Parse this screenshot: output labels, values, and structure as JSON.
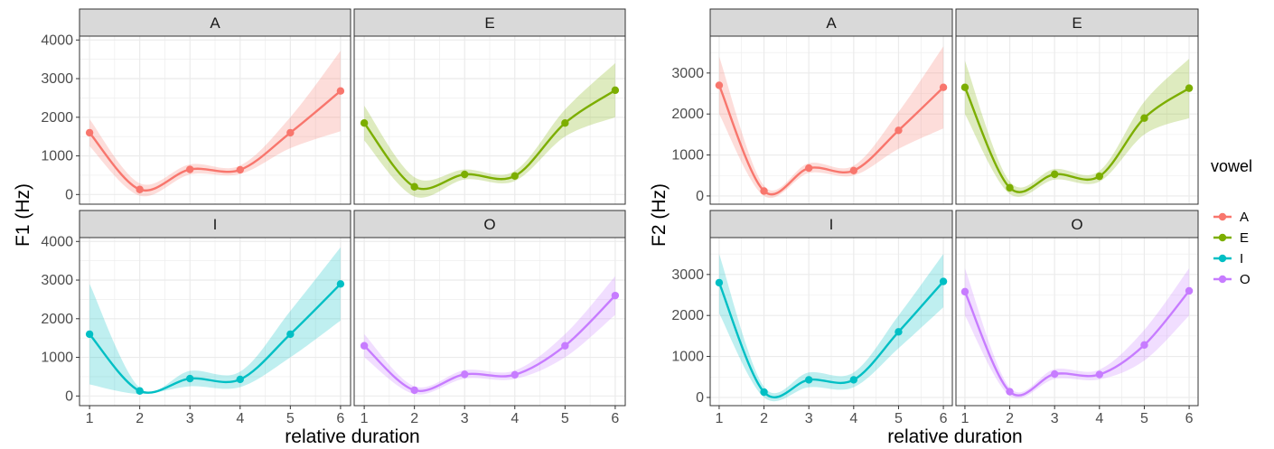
{
  "colors": {
    "A": "#F8766D",
    "E": "#7CAE00",
    "I": "#00BFC4",
    "O": "#C77CFF",
    "strip_bg": "#D9D9D9",
    "grid": "#EBEBEB"
  },
  "legend": {
    "title": "vowel",
    "items": [
      "A",
      "E",
      "I",
      "O"
    ]
  },
  "chart_data": [
    {
      "type": "line",
      "ylabel": "F1 (Hz)",
      "xlabel": "relative duration",
      "x": [
        1,
        2,
        3,
        4,
        5,
        6
      ],
      "xlim": [
        0.8,
        6.2
      ],
      "ylim": [
        -250,
        4100
      ],
      "yticks": [
        0,
        1000,
        2000,
        3000,
        4000
      ],
      "xticks": [
        1,
        2,
        3,
        4,
        5,
        6
      ],
      "panels": [
        {
          "label": "A",
          "values": [
            1600,
            130,
            650,
            640,
            1600,
            2680
          ],
          "ribbon": {
            "lower": [
              1250,
              -30,
              520,
              530,
              1200,
              1640
            ],
            "upper": [
              1950,
              290,
              780,
              750,
              2000,
              3720
            ]
          }
        },
        {
          "label": "E",
          "values": [
            1850,
            200,
            520,
            480,
            1850,
            2700
          ],
          "ribbon": {
            "lower": [
              1400,
              -50,
              390,
              350,
              1500,
              2000
            ],
            "upper": [
              2300,
              450,
              650,
              610,
              2200,
              3400
            ]
          }
        },
        {
          "label": "I",
          "values": [
            1600,
            130,
            450,
            430,
            1600,
            2900
          ],
          "ribbon": {
            "lower": [
              300,
              50,
              250,
              230,
              1000,
              1950
            ],
            "upper": [
              2900,
              210,
              650,
              630,
              2200,
              3850
            ]
          }
        },
        {
          "label": "O",
          "values": [
            1300,
            150,
            560,
            550,
            1300,
            2600
          ],
          "ribbon": {
            "lower": [
              1000,
              50,
              450,
              440,
              1000,
              2100
            ],
            "upper": [
              1600,
              250,
              670,
              660,
              1600,
              3100
            ]
          }
        }
      ]
    },
    {
      "type": "line",
      "ylabel": "F2 (Hz)",
      "xlabel": "relative duration",
      "x": [
        1,
        2,
        3,
        4,
        5,
        6
      ],
      "xlim": [
        0.8,
        6.2
      ],
      "ylim": [
        -200,
        3900
      ],
      "yticks": [
        0,
        1000,
        2000,
        3000
      ],
      "xticks": [
        1,
        2,
        3,
        4,
        5,
        6
      ],
      "panels": [
        {
          "label": "A",
          "values": [
            2700,
            120,
            680,
            620,
            1600,
            2650
          ],
          "ribbon": {
            "lower": [
              2000,
              0,
              560,
              500,
              1150,
              1650
            ],
            "upper": [
              3400,
              250,
              800,
              740,
              2050,
              3650
            ]
          }
        },
        {
          "label": "E",
          "values": [
            2650,
            200,
            530,
            480,
            1900,
            2630
          ],
          "ribbon": {
            "lower": [
              2000,
              50,
              400,
              350,
              1500,
              1900
            ],
            "upper": [
              3300,
              350,
              660,
              610,
              2300,
              3350
            ]
          }
        },
        {
          "label": "I",
          "values": [
            2800,
            130,
            430,
            430,
            1600,
            2830
          ],
          "ribbon": {
            "lower": [
              2050,
              0,
              250,
              250,
              1200,
              2200
            ],
            "upper": [
              3500,
              260,
              610,
              610,
              2000,
              3500
            ]
          }
        },
        {
          "label": "O",
          "values": [
            2580,
            140,
            570,
            560,
            1280,
            2600
          ],
          "ribbon": {
            "lower": [
              2000,
              40,
              450,
              440,
              900,
              2000
            ],
            "upper": [
              3150,
              240,
              690,
              680,
              1650,
              3150
            ]
          }
        }
      ]
    }
  ]
}
